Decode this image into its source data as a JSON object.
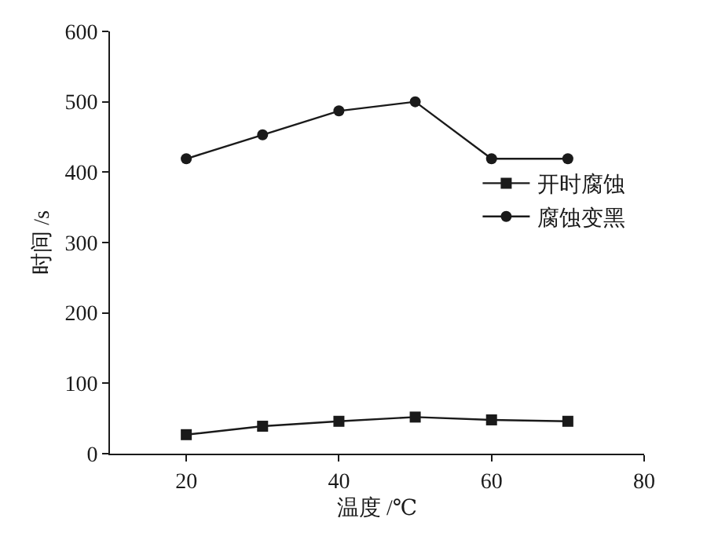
{
  "chart_data": {
    "type": "line",
    "xlabel": "温度 /℃",
    "ylabel": "时间 /s",
    "x": [
      20,
      30,
      40,
      50,
      60,
      70
    ],
    "series": [
      {
        "name": "开时腐蚀",
        "color": "#1a1a1a",
        "marker": "square",
        "values": [
          27,
          39,
          46,
          52,
          48,
          46
        ]
      },
      {
        "name": "腐蚀变黑",
        "color": "#1a1a1a",
        "marker": "circle",
        "values": [
          419,
          453,
          487,
          500,
          419,
          419
        ]
      }
    ],
    "xlim": [
      10,
      80
    ],
    "xticks": [
      20,
      40,
      60,
      80
    ],
    "ylim": [
      0,
      600
    ],
    "yticks": [
      0,
      100,
      200,
      300,
      400,
      500,
      600
    ],
    "legend": "right",
    "line_style": "solid"
  }
}
